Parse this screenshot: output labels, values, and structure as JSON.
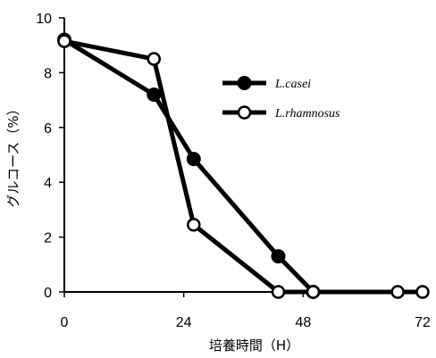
{
  "chart_data": {
    "type": "line",
    "xlabel": "培養時間（H）",
    "ylabel": "グルコース（%）",
    "xlim": [
      0,
      72
    ],
    "ylim": [
      0,
      10
    ],
    "xticks": [
      0,
      24,
      48,
      72
    ],
    "yticks": [
      0,
      2,
      4,
      6,
      8,
      10
    ],
    "grid": false,
    "legend_position": "top-right",
    "series": [
      {
        "name": "L.casei",
        "marker": "filled-circle",
        "color": "#000000",
        "x": [
          0,
          18,
          26,
          43,
          50
        ],
        "y": [
          9.2,
          7.2,
          4.85,
          1.3,
          0
        ]
      },
      {
        "name": "L.rhamnosus",
        "marker": "open-circle",
        "color": "#000000",
        "x": [
          0,
          18,
          26,
          43,
          50,
          67,
          72
        ],
        "y": [
          9.15,
          8.5,
          2.45,
          0,
          0,
          0,
          0
        ]
      }
    ]
  }
}
